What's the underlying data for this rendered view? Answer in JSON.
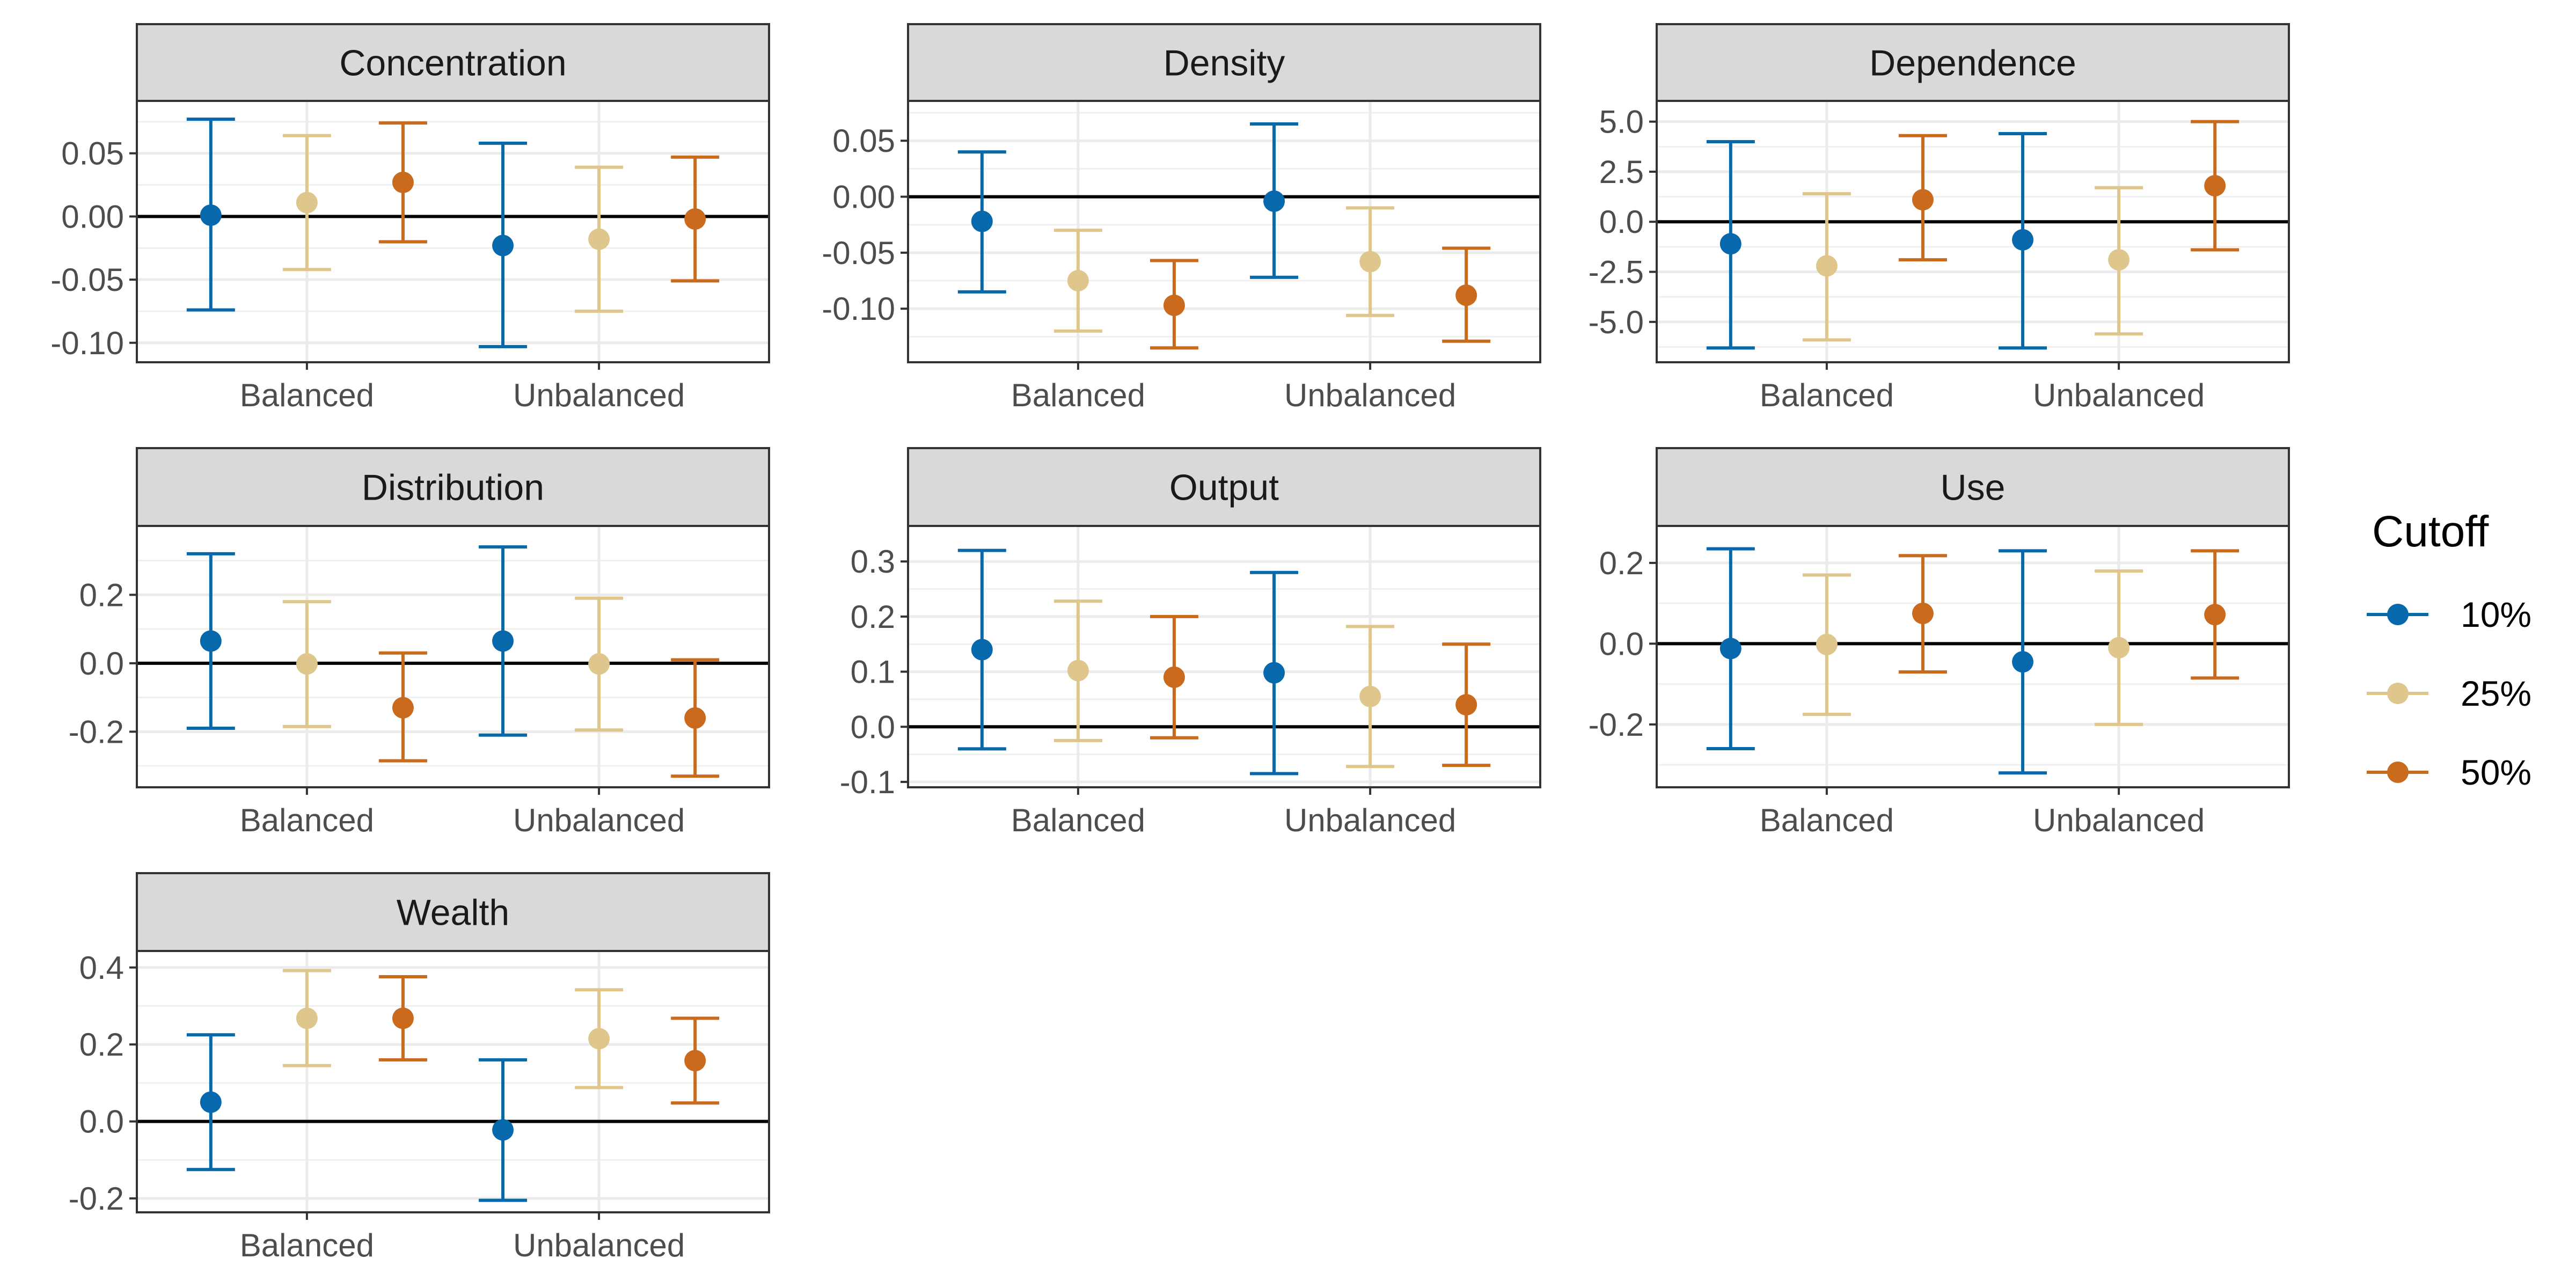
{
  "chart_data": {
    "type": "errorbar",
    "categories": [
      "Balanced",
      "Unbalanced"
    ],
    "legend": {
      "title": "Cutoff",
      "position": "right",
      "entries": [
        {
          "label": "10%",
          "color": "#0868ac"
        },
        {
          "label": "25%",
          "color": "#dfc68c"
        },
        {
          "label": "50%",
          "color": "#c96a1c"
        }
      ]
    },
    "reference_line": 0,
    "panels": [
      {
        "title": "Concentration",
        "ylim": [
          -0.112,
          0.083
        ],
        "yticks": [
          0.05,
          0.0,
          -0.05,
          -0.1
        ],
        "ytick_labels": [
          "0.05",
          "0.00",
          "-0.05",
          "-0.10"
        ],
        "series": [
          {
            "name": "10%",
            "estimate": [
              0.001,
              -0.023
            ],
            "lower": [
              -0.074,
              -0.103
            ],
            "upper": [
              0.077,
              0.058
            ]
          },
          {
            "name": "25%",
            "estimate": [
              0.011,
              -0.018
            ],
            "lower": [
              -0.042,
              -0.075
            ],
            "upper": [
              0.064,
              0.039
            ]
          },
          {
            "name": "50%",
            "estimate": [
              0.027,
              -0.002
            ],
            "lower": [
              -0.02,
              -0.051
            ],
            "upper": [
              0.074,
              0.047
            ]
          }
        ]
      },
      {
        "title": "Density",
        "ylim": [
          -0.144,
          0.076
        ],
        "yticks": [
          0.05,
          0.0,
          -0.05,
          -0.1
        ],
        "ytick_labels": [
          "0.05",
          "0.00",
          "-0.05",
          "-0.10"
        ],
        "series": [
          {
            "name": "10%",
            "estimate": [
              -0.022,
              -0.004
            ],
            "lower": [
              -0.085,
              -0.072
            ],
            "upper": [
              0.04,
              0.065
            ]
          },
          {
            "name": "25%",
            "estimate": [
              -0.075,
              -0.058
            ],
            "lower": [
              -0.12,
              -0.106
            ],
            "upper": [
              -0.03,
              -0.01
            ]
          },
          {
            "name": "50%",
            "estimate": [
              -0.097,
              -0.088
            ],
            "lower": [
              -0.135,
              -0.129
            ],
            "upper": [
              -0.057,
              -0.046
            ]
          }
        ]
      },
      {
        "title": "Dependence",
        "ylim": [
          -6.8,
          5.5
        ],
        "yticks": [
          5.0,
          2.5,
          0.0,
          -2.5,
          -5.0
        ],
        "ytick_labels": [
          "5.0",
          "2.5",
          "0.0",
          "-2.5",
          "-5.0"
        ],
        "series": [
          {
            "name": "10%",
            "estimate": [
              -1.1,
              -0.9
            ],
            "lower": [
              -6.3,
              -6.3
            ],
            "upper": [
              4.0,
              4.4
            ]
          },
          {
            "name": "25%",
            "estimate": [
              -2.2,
              -1.9
            ],
            "lower": [
              -5.9,
              -5.6
            ],
            "upper": [
              1.4,
              1.7
            ]
          },
          {
            "name": "50%",
            "estimate": [
              1.1,
              1.8
            ],
            "lower": [
              -1.9,
              -1.4
            ],
            "upper": [
              4.3,
              5.0
            ]
          }
        ]
      },
      {
        "title": "Distribution",
        "ylim": [
          -0.35,
          0.37
        ],
        "yticks": [
          0.2,
          0.0,
          -0.2
        ],
        "ytick_labels": [
          "0.2",
          "0.0",
          "-0.2"
        ],
        "series": [
          {
            "name": "10%",
            "estimate": [
              0.065,
              0.065
            ],
            "lower": [
              -0.19,
              -0.21
            ],
            "upper": [
              0.32,
              0.34
            ]
          },
          {
            "name": "25%",
            "estimate": [
              -0.002,
              -0.002
            ],
            "lower": [
              -0.185,
              -0.195
            ],
            "upper": [
              0.18,
              0.19
            ]
          },
          {
            "name": "50%",
            "estimate": [
              -0.13,
              -0.16
            ],
            "lower": [
              -0.285,
              -0.33
            ],
            "upper": [
              0.03,
              0.01
            ]
          }
        ]
      },
      {
        "title": "Output",
        "ylim": [
          -0.102,
          0.345
        ],
        "yticks": [
          0.3,
          0.2,
          0.1,
          0.0,
          -0.1
        ],
        "ytick_labels": [
          "0.3",
          "0.2",
          "0.1",
          "0.0",
          "-0.1"
        ],
        "series": [
          {
            "name": "10%",
            "estimate": [
              0.14,
              0.098
            ],
            "lower": [
              -0.04,
              -0.085
            ],
            "upper": [
              0.32,
              0.28
            ]
          },
          {
            "name": "25%",
            "estimate": [
              0.102,
              0.055
            ],
            "lower": [
              -0.025,
              -0.072
            ],
            "upper": [
              0.228,
              0.182
            ]
          },
          {
            "name": "50%",
            "estimate": [
              0.09,
              0.04
            ],
            "lower": [
              -0.02,
              -0.07
            ],
            "upper": [
              0.2,
              0.15
            ]
          }
        ]
      },
      {
        "title": "Use",
        "ylim": [
          -0.345,
          0.265
        ],
        "yticks": [
          0.2,
          0.0,
          -0.2
        ],
        "ytick_labels": [
          "0.2",
          "0.0",
          "-0.2"
        ],
        "series": [
          {
            "name": "10%",
            "estimate": [
              -0.012,
              -0.045
            ],
            "lower": [
              -0.26,
              -0.32
            ],
            "upper": [
              0.235,
              0.23
            ]
          },
          {
            "name": "25%",
            "estimate": [
              -0.002,
              -0.01
            ],
            "lower": [
              -0.175,
              -0.2
            ],
            "upper": [
              0.17,
              0.18
            ]
          },
          {
            "name": "50%",
            "estimate": [
              0.075,
              0.072
            ],
            "lower": [
              -0.07,
              -0.085
            ],
            "upper": [
              0.218,
              0.23
            ]
          }
        ]
      },
      {
        "title": "Wealth",
        "ylim": [
          -0.225,
          0.415
        ],
        "yticks": [
          0.4,
          0.2,
          0.0,
          -0.2
        ],
        "ytick_labels": [
          "0.4",
          "0.2",
          "0.0",
          "-0.2"
        ],
        "series": [
          {
            "name": "10%",
            "estimate": [
              0.05,
              -0.022
            ],
            "lower": [
              -0.125,
              -0.205
            ],
            "upper": [
              0.225,
              0.16
            ]
          },
          {
            "name": "25%",
            "estimate": [
              0.268,
              0.215
            ],
            "lower": [
              0.145,
              0.088
            ],
            "upper": [
              0.392,
              0.342
            ]
          },
          {
            "name": "50%",
            "estimate": [
              0.268,
              0.158
            ],
            "lower": [
              0.16,
              0.048
            ],
            "upper": [
              0.376,
              0.268
            ]
          }
        ]
      }
    ]
  }
}
